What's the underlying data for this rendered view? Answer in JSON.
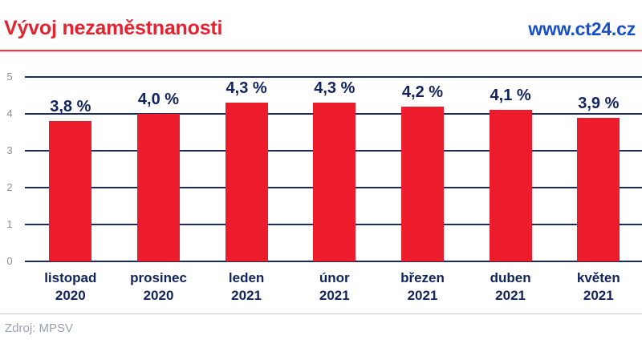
{
  "header": {
    "title": "Vývoj nezaměstnanosti",
    "site": "www.ct24.cz"
  },
  "footer": {
    "source": "Zdroj: MPSV"
  },
  "colors": {
    "bar": "#ed1c2d",
    "title_red": "#e32430",
    "site_blue": "#1750c5",
    "navy_text": "#12245e",
    "grid_navy": "#1c2a66",
    "tick_gray": "#8d909c",
    "red_rule": "#d0494f",
    "divider_gray": "#c9c9ce",
    "source_gray": "#9b9fb2"
  },
  "chart_data": {
    "type": "bar",
    "title": "Vývoj nezaměstnanosti",
    "xlabel": "",
    "ylabel": "",
    "ylim": [
      0,
      5
    ],
    "yticks": [
      0,
      1,
      2,
      3,
      4,
      5
    ],
    "grid": true,
    "legend": false,
    "categories": [
      {
        "line1": "listopad",
        "line2": "2020"
      },
      {
        "line1": "prosinec",
        "line2": "2020"
      },
      {
        "line1": "leden",
        "line2": "2021"
      },
      {
        "line1": "únor",
        "line2": "2021"
      },
      {
        "line1": "březen",
        "line2": "2021"
      },
      {
        "line1": "duben",
        "line2": "2021"
      },
      {
        "line1": "květen",
        "line2": "2021"
      }
    ],
    "values": [
      3.8,
      4.0,
      4.3,
      4.3,
      4.2,
      4.1,
      3.9
    ],
    "value_labels": [
      "3,8 %",
      "4,0 %",
      "4,3 %",
      "4,3 %",
      "4,2 %",
      "4,1 %",
      "3,9 %"
    ]
  }
}
